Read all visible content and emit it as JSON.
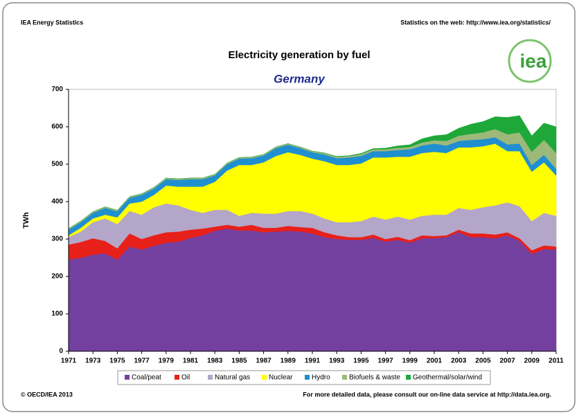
{
  "header": {
    "left": "IEA Energy Statistics",
    "right": "Statistics on the web: http://www.iea.org/statistics/",
    "logo_text": "iea"
  },
  "footer": {
    "left": "© OECD/IEA 2013",
    "right": "For more detailed data, please consult our on-line data service at http://data.iea.org."
  },
  "chart_data": {
    "type": "stacked_area",
    "title": "Electricity generation by fuel",
    "subtitle": "Germany",
    "y_label": "TWh",
    "x": [
      1971,
      1972,
      1973,
      1974,
      1975,
      1976,
      1977,
      1978,
      1979,
      1980,
      1981,
      1982,
      1983,
      1984,
      1985,
      1986,
      1987,
      1988,
      1989,
      1990,
      1991,
      1992,
      1993,
      1994,
      1995,
      1996,
      1997,
      1998,
      1999,
      2000,
      2001,
      2002,
      2003,
      2004,
      2005,
      2006,
      2007,
      2008,
      2009,
      2010,
      2011
    ],
    "xlim": [
      1971,
      2011
    ],
    "xticks": [
      1971,
      1973,
      1975,
      1977,
      1979,
      1981,
      1983,
      1985,
      1987,
      1989,
      1991,
      1993,
      1995,
      1997,
      1999,
      2001,
      2003,
      2005,
      2007,
      2009,
      2011
    ],
    "ylim": [
      0,
      700
    ],
    "yticks": [
      0,
      100,
      200,
      300,
      400,
      500,
      600,
      700
    ],
    "grid": false,
    "legend": "bottom",
    "series": [
      {
        "name": "Coal/peat",
        "color": "#7440a0",
        "values": [
          245,
          250,
          258,
          262,
          245,
          280,
          272,
          282,
          290,
          293,
          303,
          310,
          322,
          328,
          323,
          323,
          318,
          320,
          322,
          320,
          315,
          305,
          300,
          298,
          298,
          303,
          293,
          298,
          290,
          302,
          302,
          305,
          318,
          305,
          305,
          302,
          310,
          295,
          260,
          273,
          272
        ]
      },
      {
        "name": "Oil",
        "color": "#e8201a",
        "values": [
          40,
          42,
          44,
          33,
          30,
          35,
          28,
          28,
          28,
          27,
          22,
          18,
          11,
          10,
          10,
          15,
          12,
          10,
          13,
          12,
          15,
          13,
          10,
          7,
          7,
          9,
          7,
          8,
          7,
          8,
          6,
          5,
          7,
          10,
          10,
          10,
          8,
          7,
          10,
          10,
          8
        ]
      },
      {
        "name": "Natural gas",
        "color": "#b3a6c8",
        "values": [
          20,
          28,
          43,
          60,
          65,
          60,
          65,
          75,
          77,
          70,
          53,
          42,
          45,
          40,
          29,
          32,
          38,
          38,
          40,
          43,
          38,
          37,
          35,
          40,
          43,
          48,
          52,
          54,
          55,
          52,
          57,
          55,
          58,
          63,
          70,
          78,
          80,
          86,
          78,
          87,
          82
        ]
      },
      {
        "name": "Nuclear",
        "color": "#ffff00",
        "values": [
          5,
          10,
          10,
          10,
          18,
          20,
          35,
          33,
          48,
          50,
          62,
          70,
          75,
          105,
          136,
          128,
          137,
          154,
          157,
          150,
          147,
          153,
          153,
          153,
          154,
          158,
          166,
          160,
          168,
          168,
          168,
          165,
          162,
          167,
          163,
          165,
          137,
          147,
          132,
          135,
          108
        ]
      },
      {
        "name": "Hydro",
        "color": "#1f8fd0",
        "values": [
          15,
          15,
          15,
          18,
          16,
          15,
          18,
          17,
          17,
          18,
          20,
          20,
          17,
          17,
          17,
          18,
          18,
          21,
          20,
          18,
          17,
          18,
          18,
          20,
          20,
          17,
          17,
          18,
          20,
          20,
          22,
          20,
          17,
          20,
          19,
          17,
          18,
          20,
          18,
          20,
          18
        ]
      },
      {
        "name": "Biofuels & waste",
        "color": "#9cb97a",
        "values": [
          3,
          3,
          3,
          3,
          3,
          3,
          3,
          3,
          3,
          3,
          3,
          3,
          3,
          3,
          3,
          3,
          3,
          3,
          3,
          3,
          3,
          4,
          4,
          4,
          5,
          5,
          5,
          6,
          6,
          8,
          9,
          12,
          14,
          16,
          18,
          22,
          27,
          30,
          35,
          40,
          42
        ]
      },
      {
        "name": "Geothermal/solar/wind",
        "color": "#1ea83a",
        "values": [
          0,
          0,
          0,
          0,
          0,
          0,
          0,
          0,
          0,
          0,
          0,
          0,
          0,
          0,
          0,
          0,
          0,
          0,
          0,
          0,
          0,
          0,
          1,
          1,
          2,
          2,
          3,
          5,
          6,
          10,
          12,
          17,
          20,
          26,
          29,
          33,
          45,
          45,
          43,
          45,
          70
        ]
      }
    ]
  }
}
